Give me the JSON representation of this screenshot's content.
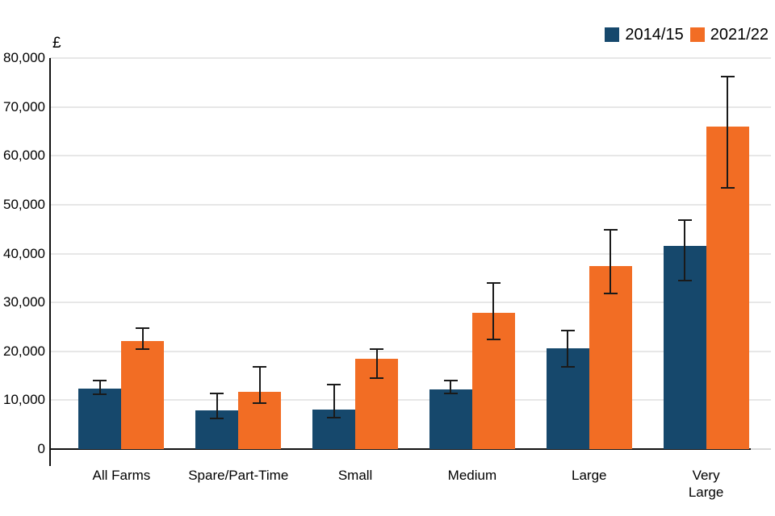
{
  "chart_data": {
    "type": "bar",
    "title": "",
    "ylabel": "£",
    "xlabel": "",
    "ylim": [
      0,
      80000
    ],
    "ytick_step": 10000,
    "grid": true,
    "legend_position": "top-right",
    "categories": [
      "All Farms",
      "Spare/Part-Time",
      "Small",
      "Medium",
      "Large",
      "Very\nLarge"
    ],
    "series": [
      {
        "name": "2014/15",
        "color": "#16486C",
        "values": [
          12400,
          7900,
          8100,
          12200,
          20600,
          41500
        ],
        "error_low": [
          11200,
          6300,
          6500,
          11300,
          16900,
          34500
        ],
        "error_high": [
          14000,
          11300,
          13200,
          14100,
          24300,
          46800
        ]
      },
      {
        "name": "2021/22",
        "color": "#F26D24",
        "values": [
          22100,
          11700,
          18500,
          27800,
          37400,
          66000
        ],
        "error_low": [
          20400,
          9400,
          14500,
          22500,
          31800,
          53500
        ],
        "error_high": [
          24700,
          16800,
          20500,
          34000,
          44800,
          76200
        ]
      }
    ]
  }
}
